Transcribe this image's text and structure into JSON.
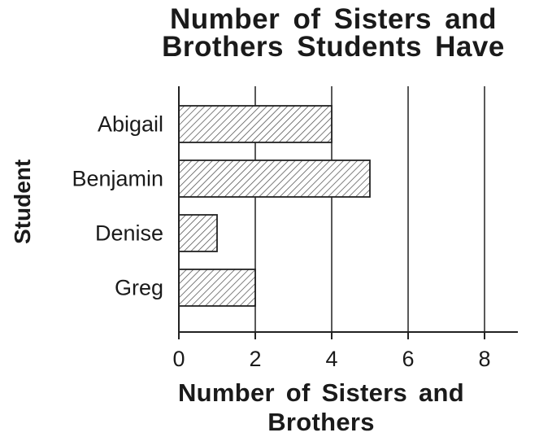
{
  "chart_data": {
    "type": "bar",
    "orientation": "horizontal",
    "title_lines": [
      "Number of Sisters and",
      "Brothers Students Have"
    ],
    "xlabel": "Number of Sisters and Brothers",
    "ylabel": "Student",
    "categories": [
      "Abigail",
      "Benjamin",
      "Denise",
      "Greg"
    ],
    "values": [
      4,
      5,
      1,
      2
    ],
    "xlim": [
      0,
      9
    ],
    "xticks": [
      0,
      2,
      4,
      6,
      8
    ],
    "grid": true,
    "bar_fill": "hatched"
  }
}
